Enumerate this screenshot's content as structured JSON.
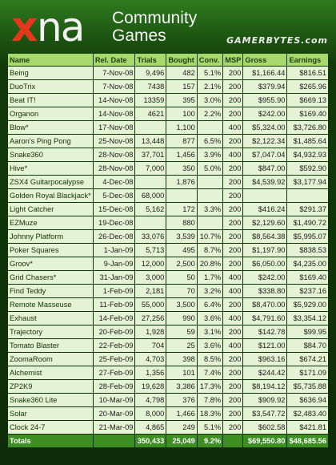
{
  "header": {
    "logo_x": "x",
    "logo_na": "na",
    "logo_line1": "Community",
    "logo_line2": "Games",
    "brand": "GAMERBYTES.com"
  },
  "table": {
    "columns": [
      "Name",
      "Rel. Date",
      "Trials",
      "Bought",
      "Conv.",
      "MSP",
      "Gross",
      "Earnings"
    ],
    "rows": [
      [
        "Being",
        "7-Nov-08",
        "9,496",
        "482",
        "5.1%",
        "200",
        "$1,166.44",
        "$816.51"
      ],
      [
        "DuoTrix",
        "7-Nov-08",
        "7438",
        "157",
        "2.1%",
        "200",
        "$379.94",
        "$265.96"
      ],
      [
        "Beat IT!",
        "14-Nov-08",
        "13359",
        "395",
        "3.0%",
        "200",
        "$955.90",
        "$669.13"
      ],
      [
        "Organon",
        "14-Nov-08",
        "4621",
        "100",
        "2.2%",
        "200",
        "$242.00",
        "$169.40"
      ],
      [
        "Blow*",
        "17-Nov-08",
        "",
        "1,100",
        "",
        "400",
        "$5,324.00",
        "$3,726.80"
      ],
      [
        "Aaron's Ping Pong",
        "25-Nov-08",
        "13,448",
        "877",
        "6.5%",
        "200",
        "$2,122.34",
        "$1,485.64"
      ],
      [
        "Snake360",
        "28-Nov-08",
        "37,701",
        "1,456",
        "3.9%",
        "400",
        "$7,047.04",
        "$4,932.93"
      ],
      [
        "Hive*",
        "28-Nov-08",
        "7,000",
        "350",
        "5.0%",
        "200",
        "$847.00",
        "$592.90"
      ],
      [
        "ZSX4 Guitarpocalypse",
        "4-Dec-08",
        "",
        "1,876",
        "",
        "200",
        "$4,539.92",
        "$3,177.94"
      ],
      [
        "Golden Royal Blackjack*",
        "5-Dec-08",
        "68,000",
        "",
        "",
        "200",
        "",
        ""
      ],
      [
        "Light Catcher",
        "15-Dec-08",
        "5,162",
        "172",
        "3.3%",
        "200",
        "$416.24",
        "$291.37"
      ],
      [
        "EZMuze",
        "19-Dec-08",
        "",
        "880",
        "",
        "200",
        "$2,129.60",
        "$1,490.72"
      ],
      [
        "Johnny Platform",
        "26-Dec-08",
        "33,076",
        "3,539",
        "10.7%",
        "200",
        "$8,564.38",
        "$5,995.07"
      ],
      [
        "Poker Squares",
        "1-Jan-09",
        "5,713",
        "495",
        "8.7%",
        "200",
        "$1,197.90",
        "$838.53"
      ],
      [
        "Groov*",
        "9-Jan-09",
        "12,000",
        "2,500",
        "20.8%",
        "200",
        "$6,050.00",
        "$4,235.00"
      ],
      [
        "Grid Chasers*",
        "31-Jan-09",
        "3,000",
        "50",
        "1.7%",
        "400",
        "$242.00",
        "$169.40"
      ],
      [
        "Find Teddy",
        "1-Feb-09",
        "2,181",
        "70",
        "3.2%",
        "400",
        "$338.80",
        "$237.16"
      ],
      [
        "Remote Masseuse",
        "11-Feb-09",
        "55,000",
        "3,500",
        "6.4%",
        "200",
        "$8,470.00",
        "$5,929.00"
      ],
      [
        "Exhaust",
        "14-Feb-09",
        "27,256",
        "990",
        "3.6%",
        "400",
        "$4,791.60",
        "$3,354.12"
      ],
      [
        "Trajectory",
        "20-Feb-09",
        "1,928",
        "59",
        "3.1%",
        "200",
        "$142.78",
        "$99.95"
      ],
      [
        "Tomato Blaster",
        "22-Feb-09",
        "704",
        "25",
        "3.6%",
        "400",
        "$121.00",
        "$84.70"
      ],
      [
        "ZoomaRoom",
        "25-Feb-09",
        "4,703",
        "398",
        "8.5%",
        "200",
        "$963.16",
        "$674.21"
      ],
      [
        "Alchemist",
        "27-Feb-09",
        "1,356",
        "101",
        "7.4%",
        "200",
        "$244.42",
        "$171.09"
      ],
      [
        "ZP2K9",
        "28-Feb-09",
        "19,628",
        "3,386",
        "17.3%",
        "200",
        "$8,194.12",
        "$5,735.88"
      ],
      [
        "Snake360 Lite",
        "10-Mar-09",
        "4,798",
        "376",
        "7.8%",
        "200",
        "$909.92",
        "$636.94"
      ],
      [
        "Solar",
        "20-Mar-09",
        "8,000",
        "1,466",
        "18.3%",
        "200",
        "$3,547.72",
        "$2,483.40"
      ],
      [
        "Clock 24-7",
        "21-Mar-09",
        "4,865",
        "249",
        "5.1%",
        "200",
        "$602.58",
        "$421.81"
      ]
    ],
    "totals": [
      "Totals",
      "",
      "350,433",
      "25,049",
      "9.2%",
      "",
      "$69,550.80",
      "$48,685.56"
    ]
  },
  "colors": {
    "header_bg": "#a7d96d",
    "row_bg": "#e4f3d3",
    "totals_bg": "#3d8f22",
    "logo_x": "#e3371e",
    "page_bg": "#0e2c08"
  }
}
